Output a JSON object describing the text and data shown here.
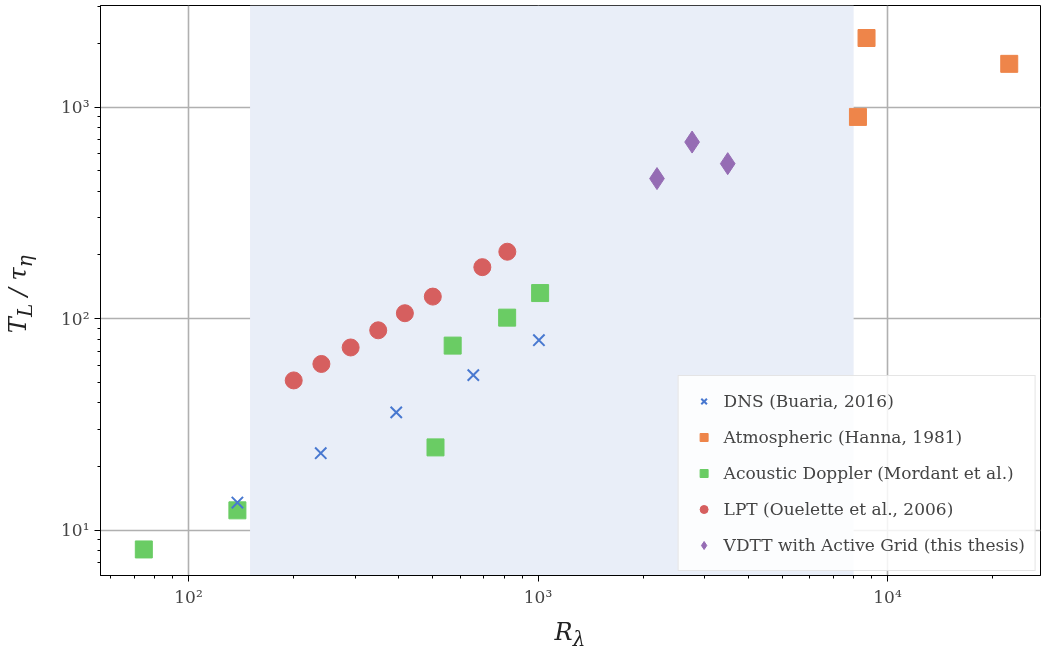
{
  "chart_data": {
    "type": "scatter",
    "xlabel": "R$_{λ}$",
    "ylabel": "T$_{L}$ / τ$_{η}$",
    "log": "xy",
    "xlim": [
      56,
      27400
    ],
    "ylim": [
      6.1,
      3020
    ],
    "xticks": [
      {
        "value": 100,
        "label": "10²"
      },
      {
        "value": 1000,
        "label": "10³"
      },
      {
        "value": 10000,
        "label": "10⁴"
      }
    ],
    "yticks": [
      {
        "value": 10,
        "label": "10¹"
      },
      {
        "value": 100,
        "label": "10²"
      },
      {
        "value": 1000,
        "label": "10³"
      }
    ],
    "grid": true,
    "legend": "bottom right",
    "bands": [
      {
        "axis": "x",
        "from": 150,
        "to": 8000,
        "color": "#e9eef8"
      }
    ],
    "series": [
      {
        "name": "DNS (Buaria, 2016)",
        "color": "#4878d0",
        "marker": "cross",
        "x": [
          138,
          239,
          393,
          653,
          1006
        ],
        "values": [
          13.5,
          23.1,
          36,
          54,
          79
        ]
      },
      {
        "name": "Atmospheric (Hanna, 1981)",
        "color": "#ee854a",
        "marker": "square",
        "x": [
          8710,
          8230,
          22300
        ],
        "values": [
          2120,
          898,
          1600
        ]
      },
      {
        "name": "Acoustic Doppler (Mordant et al.)",
        "color": "#6acc64",
        "marker": "square",
        "x": [
          74.5,
          138,
          509,
          570,
          816,
          1014
        ],
        "values": [
          8.1,
          12.4,
          24.6,
          74.5,
          101,
          132
        ]
      },
      {
        "name": "LPT (Ouelette et al., 2006)",
        "color": "#d65f5f",
        "marker": "circle",
        "x": [
          200,
          240,
          291,
          349,
          416,
          500,
          693,
          817
        ],
        "values": [
          51,
          61,
          73,
          88,
          106,
          127,
          175,
          207
        ]
      },
      {
        "name": "VDTT with Active Grid (this thesis)",
        "color": "#956cb4",
        "marker": "diamond",
        "x": [
          2190,
          2760,
          3490
        ],
        "values": [
          459,
          683,
          540
        ]
      }
    ]
  }
}
